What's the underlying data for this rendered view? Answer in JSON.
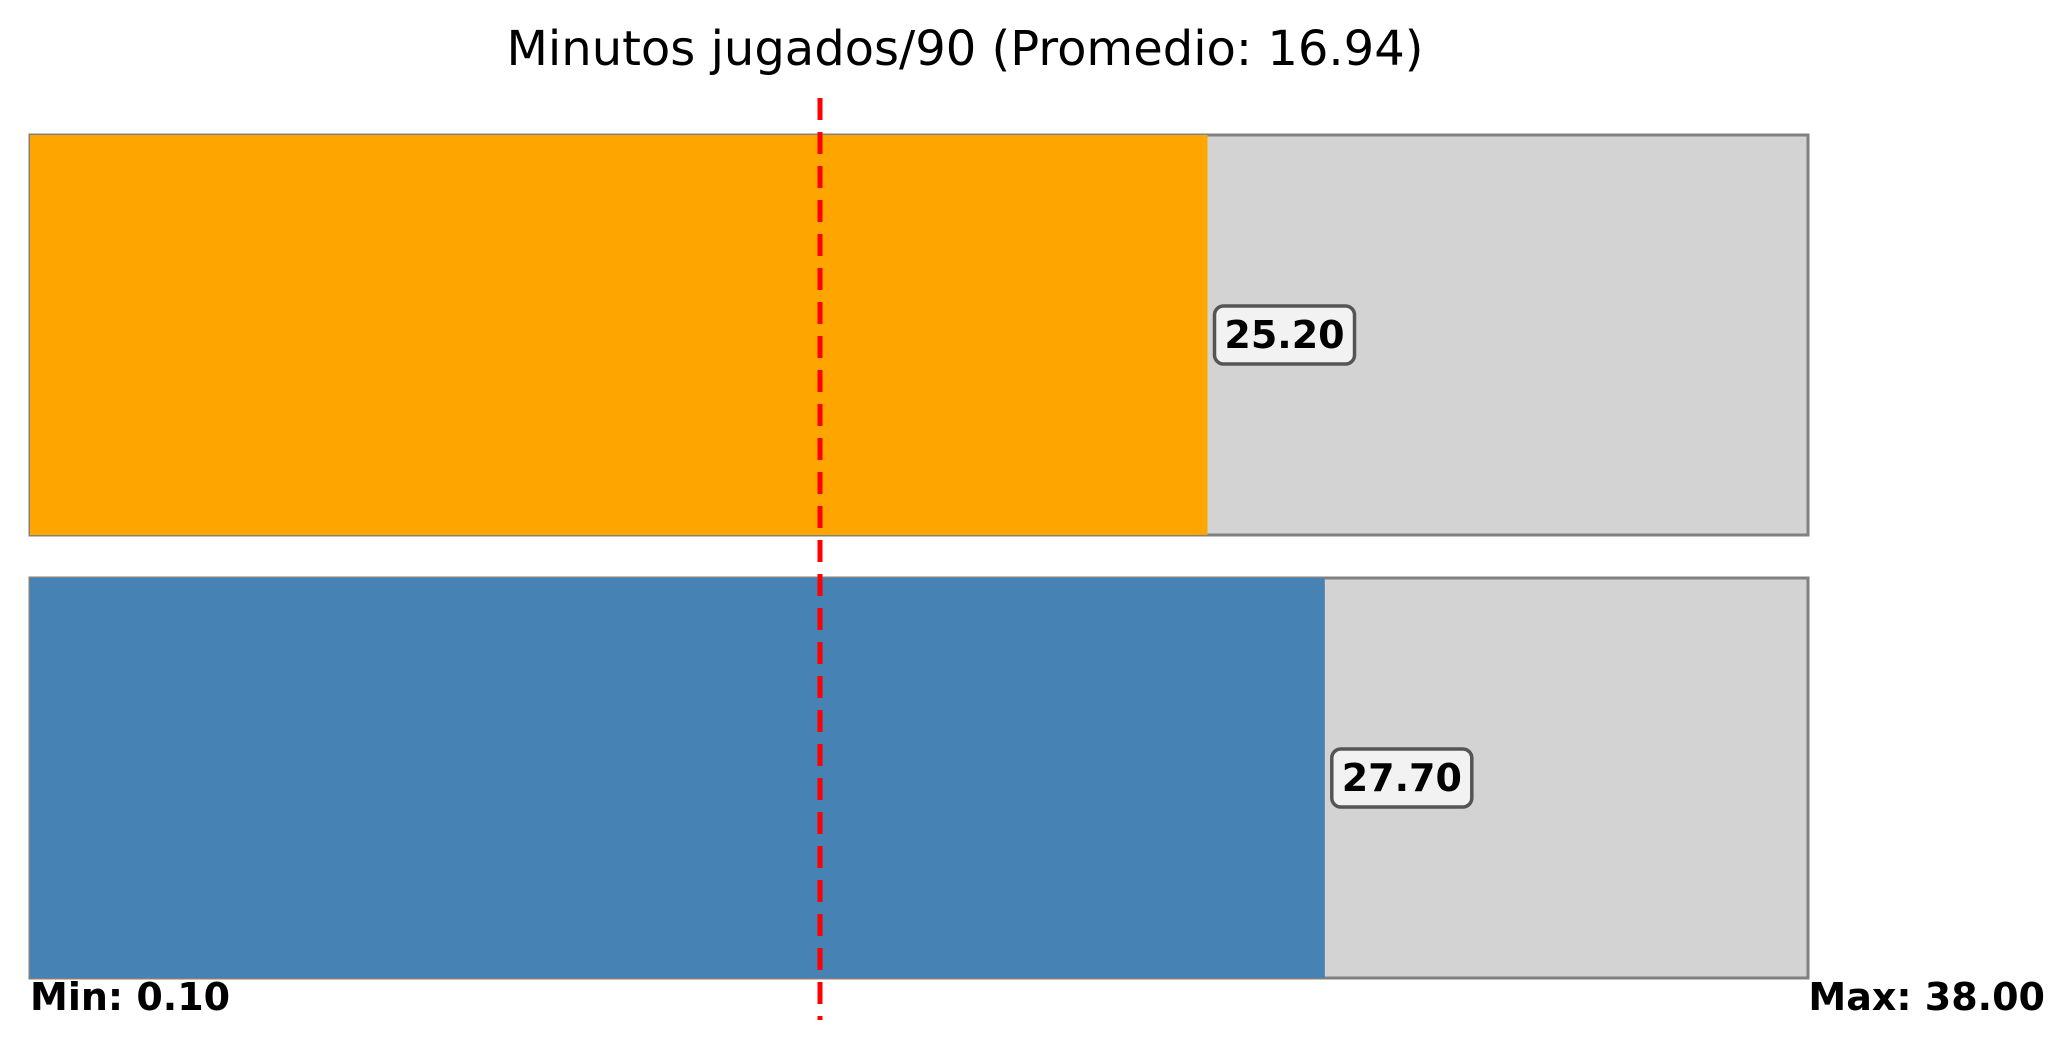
{
  "chart_data": {
    "type": "bar",
    "orientation": "horizontal",
    "title": "Minutos jugados/90 (Promedio: 16.94)",
    "xlim": [
      0.1,
      38.0
    ],
    "min_label": "Min: 0.10",
    "max_label": "Max: 38.00",
    "average": 16.94,
    "series": [
      {
        "values": [
          25.2
        ],
        "color": "#FFA500",
        "label": "25.20"
      },
      {
        "values": [
          27.7
        ],
        "color": "#4682B4",
        "label": "27.70"
      }
    ],
    "track_color": "#D3D3D3",
    "average_line_color": "#FF0000",
    "grid": false
  }
}
